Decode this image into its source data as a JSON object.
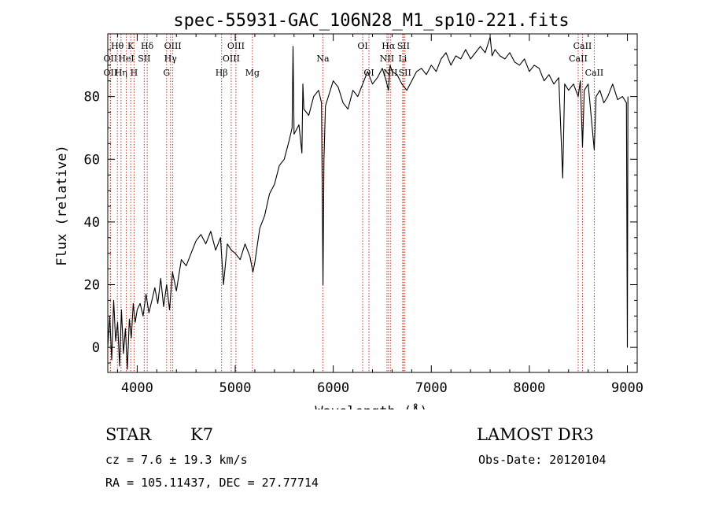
{
  "chart_data": {
    "type": "line",
    "title": "spec-55931-GAC_106N28_M1_sp10-221.fits",
    "xlabel": "Wavelength (Å)",
    "ylabel": "Flux (relative)",
    "xlim": [
      3700,
      9100
    ],
    "ylim": [
      -8,
      100
    ],
    "xticks": [
      4000,
      5000,
      6000,
      7000,
      8000,
      9000
    ],
    "yticks": [
      0,
      20,
      40,
      60,
      80
    ],
    "series": [
      {
        "name": "flux",
        "x": [
          3700,
          3720,
          3740,
          3760,
          3780,
          3800,
          3820,
          3840,
          3860,
          3880,
          3900,
          3920,
          3940,
          3960,
          3980,
          4000,
          4030,
          4060,
          4090,
          4120,
          4150,
          4180,
          4210,
          4240,
          4270,
          4300,
          4330,
          4360,
          4400,
          4450,
          4500,
          4550,
          4600,
          4650,
          4700,
          4750,
          4800,
          4850,
          4880,
          4920,
          4960,
          5000,
          5050,
          5100,
          5150,
          5180,
          5200,
          5250,
          5300,
          5350,
          5400,
          5450,
          5500,
          5550,
          5580,
          5590,
          5600,
          5650,
          5680,
          5690,
          5700,
          5750,
          5800,
          5850,
          5880,
          5895,
          5905,
          5920,
          5950,
          6000,
          6050,
          6100,
          6150,
          6200,
          6250,
          6300,
          6350,
          6400,
          6450,
          6500,
          6540,
          6563,
          6580,
          6600,
          6650,
          6700,
          6750,
          6800,
          6850,
          6900,
          6950,
          7000,
          7050,
          7100,
          7150,
          7200,
          7250,
          7300,
          7350,
          7400,
          7450,
          7500,
          7550,
          7600,
          7620,
          7650,
          7700,
          7750,
          7800,
          7850,
          7900,
          7950,
          8000,
          8050,
          8100,
          8150,
          8200,
          8250,
          8300,
          8340,
          8360,
          8400,
          8450,
          8498,
          8520,
          8542,
          8560,
          8600,
          8662,
          8680,
          8720,
          8760,
          8800,
          8850,
          8900,
          8950,
          8990,
          9000,
          9005
        ],
        "values": [
          0,
          10,
          -4,
          15,
          2,
          8,
          -6,
          12,
          -2,
          6,
          -7,
          9,
          3,
          14,
          8,
          12,
          14,
          10,
          17,
          11,
          15,
          19,
          14,
          22,
          13,
          20,
          12,
          24,
          18,
          28,
          26,
          30,
          34,
          36,
          33,
          37,
          31,
          35,
          20,
          33,
          31,
          30,
          28,
          33,
          29,
          24,
          27,
          38,
          42,
          49,
          52,
          58,
          60,
          66,
          70,
          96,
          68,
          71,
          62,
          84,
          76,
          74,
          80,
          82,
          78,
          20,
          60,
          77,
          80,
          85,
          83,
          78,
          76,
          82,
          80,
          84,
          88,
          84,
          86,
          89,
          85,
          82,
          90,
          88,
          87,
          84,
          82,
          85,
          88,
          89,
          87,
          90,
          88,
          92,
          94,
          90,
          93,
          92,
          95,
          92,
          94,
          96,
          94,
          99,
          93,
          95,
          93,
          92,
          94,
          91,
          90,
          92,
          88,
          90,
          89,
          85,
          87,
          84,
          86,
          54,
          84,
          82,
          84,
          80,
          85,
          64,
          82,
          84,
          63,
          80,
          82,
          78,
          80,
          84,
          79,
          80,
          78,
          0,
          80
        ]
      }
    ],
    "line_markers": [
      {
        "wl": 3727,
        "label": "OII",
        "row": 2
      },
      {
        "wl": 3727,
        "label": "OII",
        "row": 3
      },
      {
        "wl": 3798,
        "label": "Hθ",
        "row": 1
      },
      {
        "wl": 3835,
        "label": "Hη",
        "row": 3
      },
      {
        "wl": 3889,
        "label": "HeI",
        "row": 2
      },
      {
        "wl": 3934,
        "label": "K",
        "row": 1
      },
      {
        "wl": 3968,
        "label": "H",
        "row": 3
      },
      {
        "wl": 4072,
        "label": "SII",
        "row": 2
      },
      {
        "wl": 4102,
        "label": "Hδ",
        "row": 1
      },
      {
        "wl": 4300,
        "label": "G",
        "row": 3
      },
      {
        "wl": 4340,
        "label": "Hγ",
        "row": 2
      },
      {
        "wl": 4363,
        "label": "OIII",
        "row": 1
      },
      {
        "wl": 4861,
        "label": "Hβ",
        "row": 3
      },
      {
        "wl": 4959,
        "label": "OIII",
        "row": 2
      },
      {
        "wl": 5007,
        "label": "OIII",
        "row": 1
      },
      {
        "wl": 5175,
        "label": "Mg",
        "row": 3
      },
      {
        "wl": 5894,
        "label": "Na",
        "row": 2
      },
      {
        "wl": 6300,
        "label": "OI",
        "row": 1
      },
      {
        "wl": 6364,
        "label": "OI",
        "row": 3
      },
      {
        "wl": 6548,
        "label": "NII",
        "row": 2
      },
      {
        "wl": 6563,
        "label": "Hα",
        "row": 1
      },
      {
        "wl": 6583,
        "label": "NII",
        "row": 3
      },
      {
        "wl": 6708,
        "label": "Li",
        "row": 2
      },
      {
        "wl": 6716,
        "label": "SII",
        "row": 1
      },
      {
        "wl": 6731,
        "label": "SII",
        "row": 3
      },
      {
        "wl": 8498,
        "label": "CaII",
        "row": 2
      },
      {
        "wl": 8542,
        "label": "CaII",
        "row": 1
      },
      {
        "wl": 8662,
        "label": "CaII",
        "row": 3
      }
    ]
  },
  "info": {
    "class_label": "STAR",
    "subclass": "K7",
    "survey": "LAMOST DR3",
    "cz": "cz = 7.6 ± 19.3 km/s",
    "obs_date": "Obs-Date: 20120104",
    "coords": "RA = 105.11437, DEC =  27.77714"
  },
  "colors": {
    "marker_line": "#c0392b",
    "spectrum": "#000000"
  }
}
